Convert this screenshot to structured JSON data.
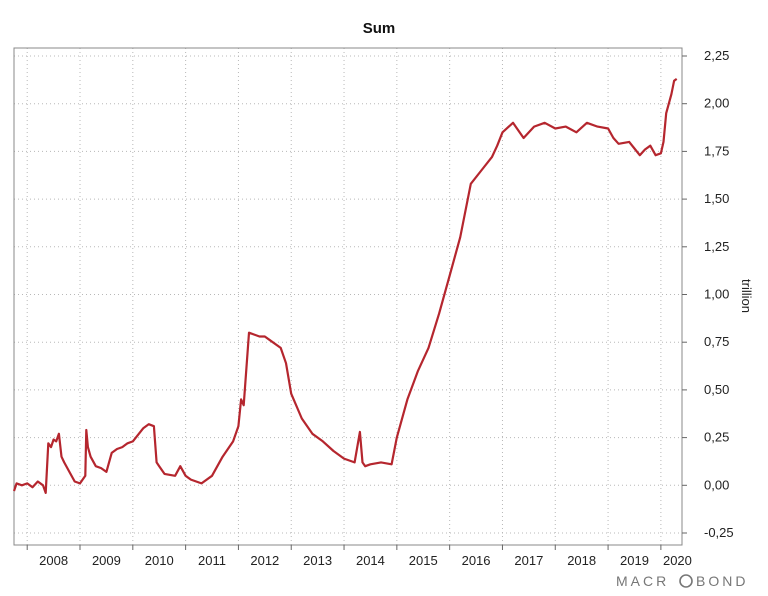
{
  "chart_data": {
    "type": "line",
    "title": "Sum",
    "ylabel": "trillion",
    "ylim": [
      -0.25,
      2.25
    ],
    "xlim": [
      2007.75,
      2020.4
    ],
    "yticks": [
      "2,25",
      "2,00",
      "1,75",
      "1,50",
      "1,25",
      "1,00",
      "0,75",
      "0,50",
      "0,25",
      "0,00",
      "-0,25"
    ],
    "ytick_values": [
      2.25,
      2.0,
      1.75,
      1.5,
      1.25,
      1.0,
      0.75,
      0.5,
      0.25,
      0.0,
      -0.25
    ],
    "xticks": [
      "2008",
      "2009",
      "2010",
      "2011",
      "2012",
      "2013",
      "2014",
      "2015",
      "2016",
      "2017",
      "2018",
      "2019",
      "2020"
    ],
    "grid": true,
    "line_color": "#b5262e",
    "series": [
      {
        "x": [
          2007.75,
          2007.8,
          2007.9,
          2008.0,
          2008.1,
          2008.2,
          2008.3,
          2008.35,
          2008.4,
          2008.45,
          2008.5,
          2008.55,
          2008.6,
          2008.65,
          2008.7,
          2008.8,
          2008.9,
          2009.0,
          2009.1,
          2009.12,
          2009.15,
          2009.2,
          2009.3,
          2009.4,
          2009.5,
          2009.6,
          2009.7,
          2009.8,
          2009.9,
          2010.0,
          2010.2,
          2010.3,
          2010.4,
          2010.45,
          2010.5,
          2010.6,
          2010.8,
          2010.9,
          2011.0,
          2011.1,
          2011.2,
          2011.3,
          2011.5,
          2011.7,
          2011.9,
          2012.0,
          2012.05,
          2012.1,
          2012.2,
          2012.4,
          2012.5,
          2012.6,
          2012.8,
          2012.9,
          2013.0,
          2013.2,
          2013.4,
          2013.6,
          2013.8,
          2014.0,
          2014.2,
          2014.3,
          2014.35,
          2014.4,
          2014.5,
          2014.7,
          2014.9,
          2015.0,
          2015.2,
          2015.4,
          2015.6,
          2015.8,
          2016.0,
          2016.2,
          2016.4,
          2016.6,
          2016.8,
          2016.9,
          2017.0,
          2017.2,
          2017.4,
          2017.6,
          2017.8,
          2018.0,
          2018.2,
          2018.4,
          2018.6,
          2018.8,
          2019.0,
          2019.1,
          2019.2,
          2019.4,
          2019.6,
          2019.7,
          2019.8,
          2019.9,
          2020.0,
          2020.05,
          2020.1,
          2020.15,
          2020.2,
          2020.25,
          2020.3
        ],
        "y": [
          -0.03,
          0.01,
          0.0,
          0.01,
          -0.01,
          0.02,
          0.0,
          -0.04,
          0.22,
          0.2,
          0.24,
          0.23,
          0.27,
          0.15,
          0.12,
          0.07,
          0.02,
          0.01,
          0.05,
          0.29,
          0.2,
          0.15,
          0.1,
          0.09,
          0.07,
          0.17,
          0.19,
          0.2,
          0.22,
          0.23,
          0.3,
          0.32,
          0.31,
          0.12,
          0.1,
          0.06,
          0.05,
          0.1,
          0.05,
          0.03,
          0.02,
          0.01,
          0.05,
          0.15,
          0.23,
          0.31,
          0.45,
          0.42,
          0.8,
          0.78,
          0.78,
          0.76,
          0.72,
          0.64,
          0.48,
          0.35,
          0.27,
          0.23,
          0.18,
          0.14,
          0.12,
          0.28,
          0.12,
          0.1,
          0.11,
          0.12,
          0.11,
          0.25,
          0.45,
          0.6,
          0.72,
          0.9,
          1.1,
          1.3,
          1.58,
          1.65,
          1.72,
          1.78,
          1.85,
          1.9,
          1.82,
          1.88,
          1.9,
          1.87,
          1.88,
          1.85,
          1.9,
          1.88,
          1.87,
          1.82,
          1.79,
          1.8,
          1.73,
          1.76,
          1.78,
          1.73,
          1.74,
          1.8,
          1.95,
          2.0,
          2.05,
          2.12,
          2.13
        ]
      }
    ]
  },
  "brand": {
    "pre": "MACR",
    "post": "BOND"
  }
}
